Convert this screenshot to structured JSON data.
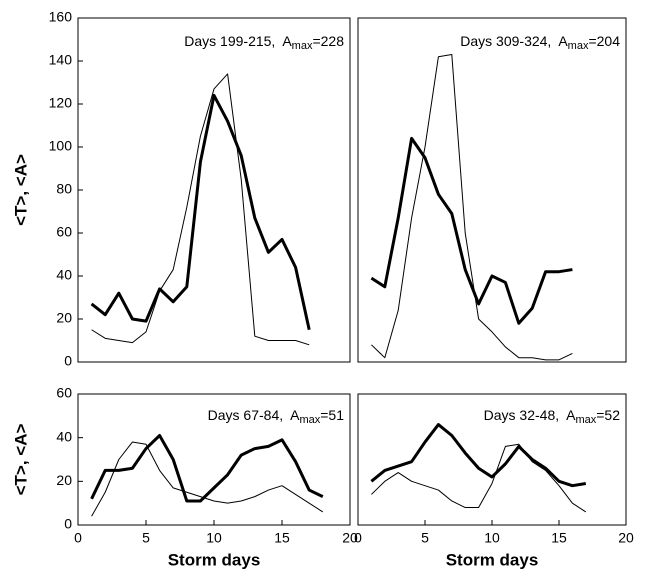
{
  "chart_data": [
    {
      "type": "line",
      "annotation": [
        "Days 199-215,  A",
        "max",
        "=228"
      ],
      "ylabel": "<T>, <A>",
      "x": [
        1,
        2,
        3,
        4,
        5,
        6,
        7,
        8,
        9,
        10,
        11,
        12,
        13,
        14,
        15,
        16,
        17
      ],
      "series": [
        {
          "color": "#000000",
          "width": 1,
          "values": [
            15,
            11,
            10,
            9,
            14,
            33,
            43,
            72,
            105,
            127,
            134,
            85,
            12,
            10,
            10,
            10,
            8
          ]
        },
        {
          "color": "#000000",
          "width": 3,
          "values": [
            27,
            22,
            32,
            20,
            19,
            34,
            28,
            35,
            93,
            124,
            112,
            96,
            67,
            51,
            57,
            44,
            15
          ]
        }
      ],
      "xlim": [
        0,
        20
      ],
      "ylim": [
        0,
        160
      ],
      "yticks": [
        0,
        20,
        40,
        60,
        80,
        100,
        120,
        140,
        160
      ]
    },
    {
      "type": "line",
      "annotation": [
        "Days 309-324,  A",
        "max",
        "=204"
      ],
      "x": [
        1,
        2,
        3,
        4,
        5,
        6,
        7,
        8,
        9,
        10,
        11,
        12,
        13,
        14,
        15,
        16
      ],
      "series": [
        {
          "color": "#000000",
          "width": 1,
          "values": [
            8,
            2,
            24,
            67,
            100,
            142,
            143,
            60,
            20,
            14,
            7,
            2,
            2,
            1,
            1,
            4
          ]
        },
        {
          "color": "#000000",
          "width": 3,
          "values": [
            39,
            35,
            67,
            104,
            95,
            78,
            69,
            43,
            27,
            40,
            37,
            18,
            25,
            42,
            42,
            43
          ]
        }
      ],
      "xlim": [
        0,
        20
      ],
      "ylim": [
        0,
        160
      ]
    },
    {
      "type": "line",
      "annotation": [
        "Days 67-84,  A",
        "max",
        "=51"
      ],
      "ylabel": "<T>, <A>",
      "xlabel": "Storm days",
      "x": [
        1,
        2,
        3,
        4,
        5,
        6,
        7,
        8,
        9,
        10,
        11,
        12,
        13,
        14,
        15,
        16,
        17,
        18
      ],
      "series": [
        {
          "color": "#000000",
          "width": 1,
          "values": [
            4,
            15,
            30,
            38,
            37,
            25,
            17,
            15,
            13,
            11,
            10,
            11,
            13,
            16,
            18,
            14,
            10,
            6
          ]
        },
        {
          "color": "#000000",
          "width": 3,
          "values": [
            12,
            25,
            25,
            26,
            35,
            41,
            30,
            11,
            11,
            17,
            23,
            32,
            35,
            36,
            39,
            29,
            16,
            13
          ]
        }
      ],
      "xlim": [
        0,
        20
      ],
      "ylim": [
        0,
        60
      ],
      "xticks": [
        0,
        5,
        10,
        15,
        20
      ],
      "yticks": [
        0,
        20,
        40,
        60
      ]
    },
    {
      "type": "line",
      "annotation": [
        "Days 32-48,  A",
        "max",
        "=52"
      ],
      "xlabel": "Storm days",
      "x": [
        1,
        2,
        3,
        4,
        5,
        6,
        7,
        8,
        9,
        10,
        11,
        12,
        13,
        14,
        15,
        16,
        17
      ],
      "series": [
        {
          "color": "#000000",
          "width": 1,
          "values": [
            14,
            20,
            24,
            20,
            18,
            16,
            11,
            8,
            8,
            19,
            36,
            37,
            29,
            25,
            18,
            10,
            6
          ]
        },
        {
          "color": "#000000",
          "width": 3,
          "values": [
            20,
            25,
            27,
            29,
            38,
            46,
            41,
            33,
            26,
            22,
            28,
            36,
            30,
            26,
            20,
            18,
            19
          ]
        }
      ],
      "xlim": [
        0,
        20
      ],
      "ylim": [
        0,
        60
      ],
      "xticks": [
        0,
        5,
        10,
        15,
        20
      ]
    }
  ]
}
